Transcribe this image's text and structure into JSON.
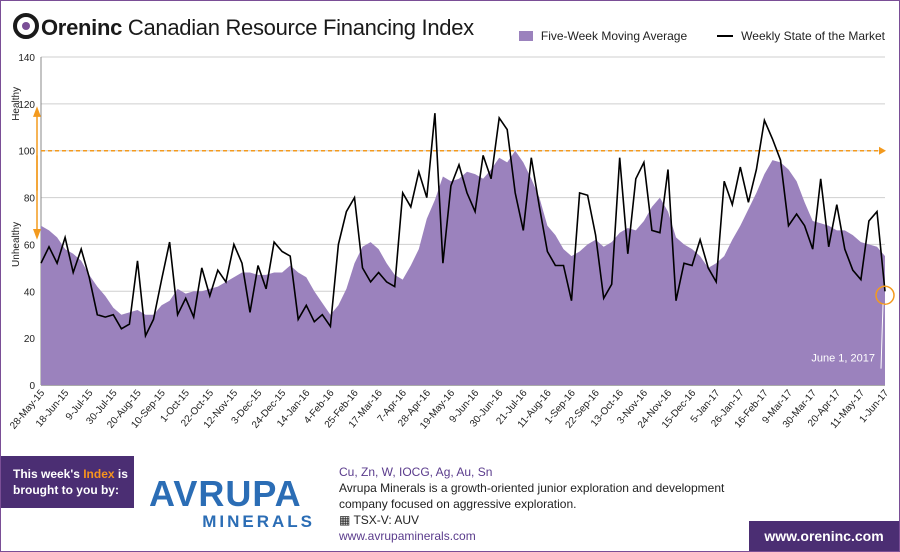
{
  "header": {
    "brand": "Oreninc",
    "title_rest": " Canadian Resource Financing Index",
    "legend_area": "Five-Week Moving Average",
    "legend_line": "Weekly State of the Market"
  },
  "colors": {
    "area": "#9b82bd",
    "line": "#000000",
    "reference": "#f39a1e",
    "brand": "#4b2e73",
    "sponsor": "#2b6db5"
  },
  "chart_data": {
    "type": "area",
    "ylim": [
      0,
      140
    ],
    "yticks": [
      0,
      20,
      40,
      60,
      80,
      100,
      120,
      140
    ],
    "reference_line": 100,
    "y_side_labels": {
      "top": "Healthy",
      "bottom": "Unhealthy"
    },
    "xlabels": [
      "28-May-15",
      "18-Jun-15",
      "9-Jul-15",
      "30-Jul-15",
      "20-Aug-15",
      "10-Sep-15",
      "1-Oct-15",
      "22-Oct-15",
      "12-Nov-15",
      "3-Dec-15",
      "24-Dec-15",
      "14-Jan-16",
      "4-Feb-16",
      "25-Feb-16",
      "17-Mar-16",
      "7-Apr-16",
      "28-Apr-16",
      "19-May-16",
      "9-Jun-16",
      "30-Jun-16",
      "21-Jul-16",
      "11-Aug-16",
      "1-Sep-16",
      "22-Sep-16",
      "13-Oct-16",
      "3-Nov-16",
      "24-Nov-16",
      "15-Dec-16",
      "5-Jan-17",
      "26-Jan-17",
      "16-Feb-17",
      "9-Mar-17",
      "30-Mar-17",
      "20-Apr-17",
      "11-May-17",
      "1-Jun-17"
    ],
    "series": [
      {
        "name": "Weekly State of the Market",
        "values": [
          52,
          59,
          52,
          63,
          48,
          58,
          46,
          30,
          29,
          30,
          24,
          26,
          53,
          21,
          28,
          45,
          61,
          30,
          37,
          29,
          50,
          38,
          49,
          44,
          60,
          52,
          31,
          51,
          41,
          61,
          57,
          55,
          28,
          34,
          27,
          30,
          25,
          60,
          74,
          80,
          50,
          44,
          48,
          44,
          42,
          82,
          76,
          91,
          80,
          116,
          52,
          85,
          94,
          82,
          74,
          98,
          88,
          114,
          109,
          82,
          66,
          97,
          76,
          57,
          51,
          51,
          36,
          82,
          81,
          64,
          37,
          43,
          97,
          56,
          88,
          95,
          66,
          65,
          92,
          36,
          52,
          51,
          62,
          50,
          44,
          87,
          77,
          93,
          78,
          92,
          113,
          105,
          96,
          68,
          73,
          68,
          58,
          88,
          59,
          77,
          58,
          49,
          45,
          70,
          74,
          40
        ]
      },
      {
        "name": "Five-Week Moving Average",
        "values": [
          68,
          66,
          63,
          58,
          56,
          53,
          47,
          42,
          38,
          33,
          30,
          31,
          32,
          30,
          30,
          34,
          36,
          41,
          39,
          40,
          40,
          41,
          42,
          44,
          46,
          48,
          48,
          47,
          47,
          48,
          48,
          51,
          48,
          46,
          40,
          35,
          30,
          34,
          41,
          52,
          59,
          61,
          58,
          52,
          47,
          45,
          51,
          58,
          71,
          79,
          89,
          87,
          88,
          91,
          90,
          88,
          92,
          97,
          95,
          100,
          95,
          88,
          80,
          68,
          64,
          58,
          55,
          57,
          60,
          62,
          59,
          61,
          65,
          67,
          66,
          70,
          76,
          80,
          74,
          63,
          60,
          58,
          55,
          50,
          52,
          55,
          62,
          68,
          75,
          82,
          90,
          96,
          95,
          92,
          87,
          78,
          70,
          69,
          68,
          66,
          66,
          64,
          61,
          60,
          59,
          55
        ]
      }
    ],
    "annotation": "June 1, 2017"
  },
  "footer": {
    "sponsor_line1": "This week's ",
    "sponsor_hl": "Index",
    "sponsor_line1b": " is",
    "sponsor_line2": "brought to you by:",
    "logo_top": "AVRUPA",
    "logo_bottom": "MINERALS",
    "metals": "Cu, Zn, W, IOCG, Ag, Au, Sn",
    "desc1": "Avrupa Minerals is a growth-oriented junior exploration and development",
    "desc2": "company focused on aggressive exploration.",
    "ticker": "TSX-V:  AUV",
    "sponsor_url": "www.avrupaminerals.com",
    "site": "www.oreninc.com"
  }
}
